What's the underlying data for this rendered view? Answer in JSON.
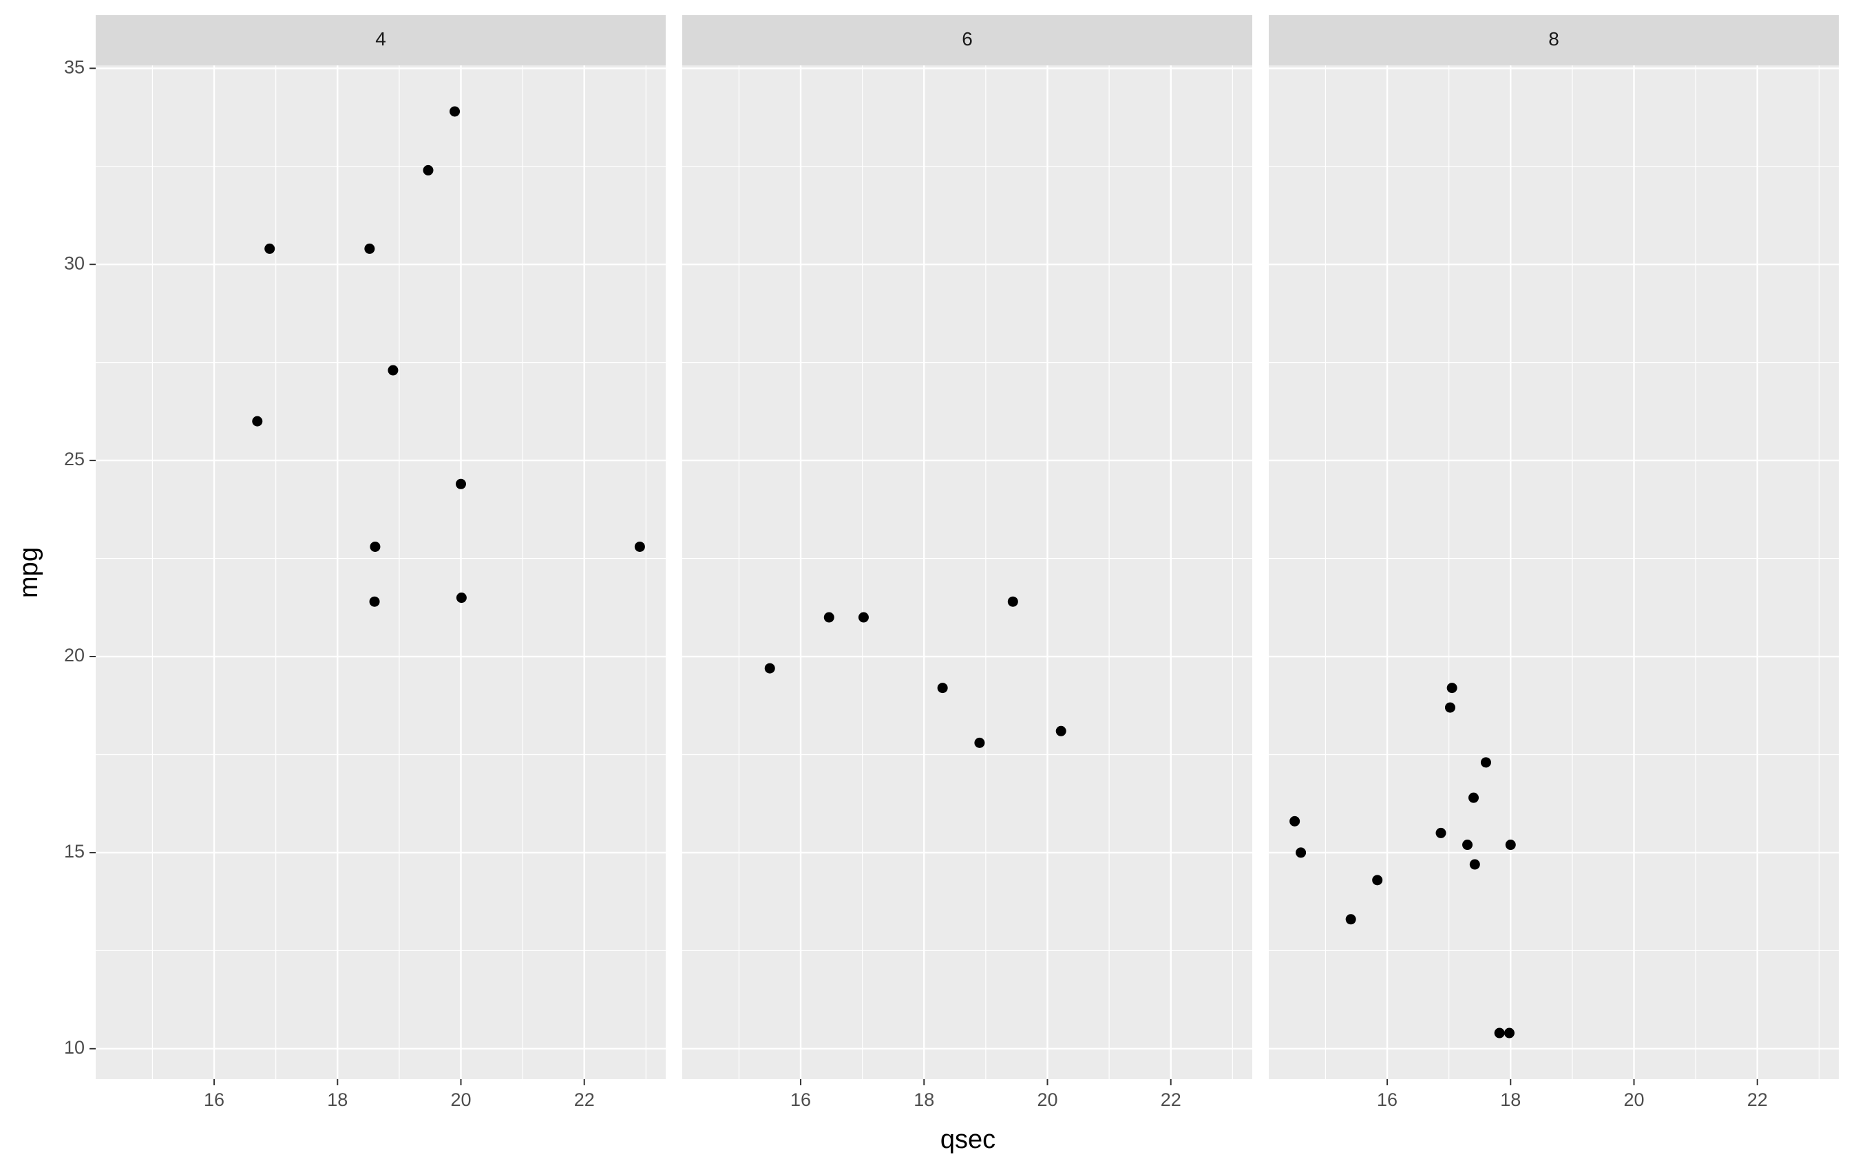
{
  "chart_data": {
    "type": "scatter",
    "x_label": "qsec",
    "y_label": "mpg",
    "xlim": [
      14.08,
      23.32
    ],
    "ylim": [
      9.225,
      35.075
    ],
    "xticks": [
      16,
      18,
      20,
      22
    ],
    "yticks": [
      10,
      15,
      20,
      25,
      30,
      35
    ],
    "grid": true,
    "color": "#000000",
    "panels": [
      {
        "strip": "4",
        "x": [
          18.61,
          20.0,
          22.9,
          19.47,
          18.52,
          19.9,
          20.01,
          18.9,
          16.7,
          16.9,
          18.6
        ],
        "y": [
          22.8,
          24.4,
          22.8,
          32.4,
          30.4,
          33.9,
          21.5,
          27.3,
          26.0,
          30.4,
          21.4
        ]
      },
      {
        "strip": "6",
        "x": [
          16.46,
          17.02,
          19.44,
          20.22,
          18.3,
          18.9,
          15.5
        ],
        "y": [
          21.0,
          21.0,
          21.4,
          18.1,
          19.2,
          17.8,
          19.7
        ]
      },
      {
        "strip": "8",
        "x": [
          17.02,
          15.84,
          17.4,
          17.6,
          18.0,
          17.98,
          17.82,
          17.42,
          16.87,
          17.3,
          15.41,
          17.05,
          14.5,
          14.6
        ],
        "y": [
          18.7,
          14.3,
          16.4,
          17.3,
          15.2,
          10.4,
          10.4,
          14.7,
          15.5,
          15.2,
          13.3,
          19.2,
          15.8,
          15.0
        ]
      }
    ]
  }
}
